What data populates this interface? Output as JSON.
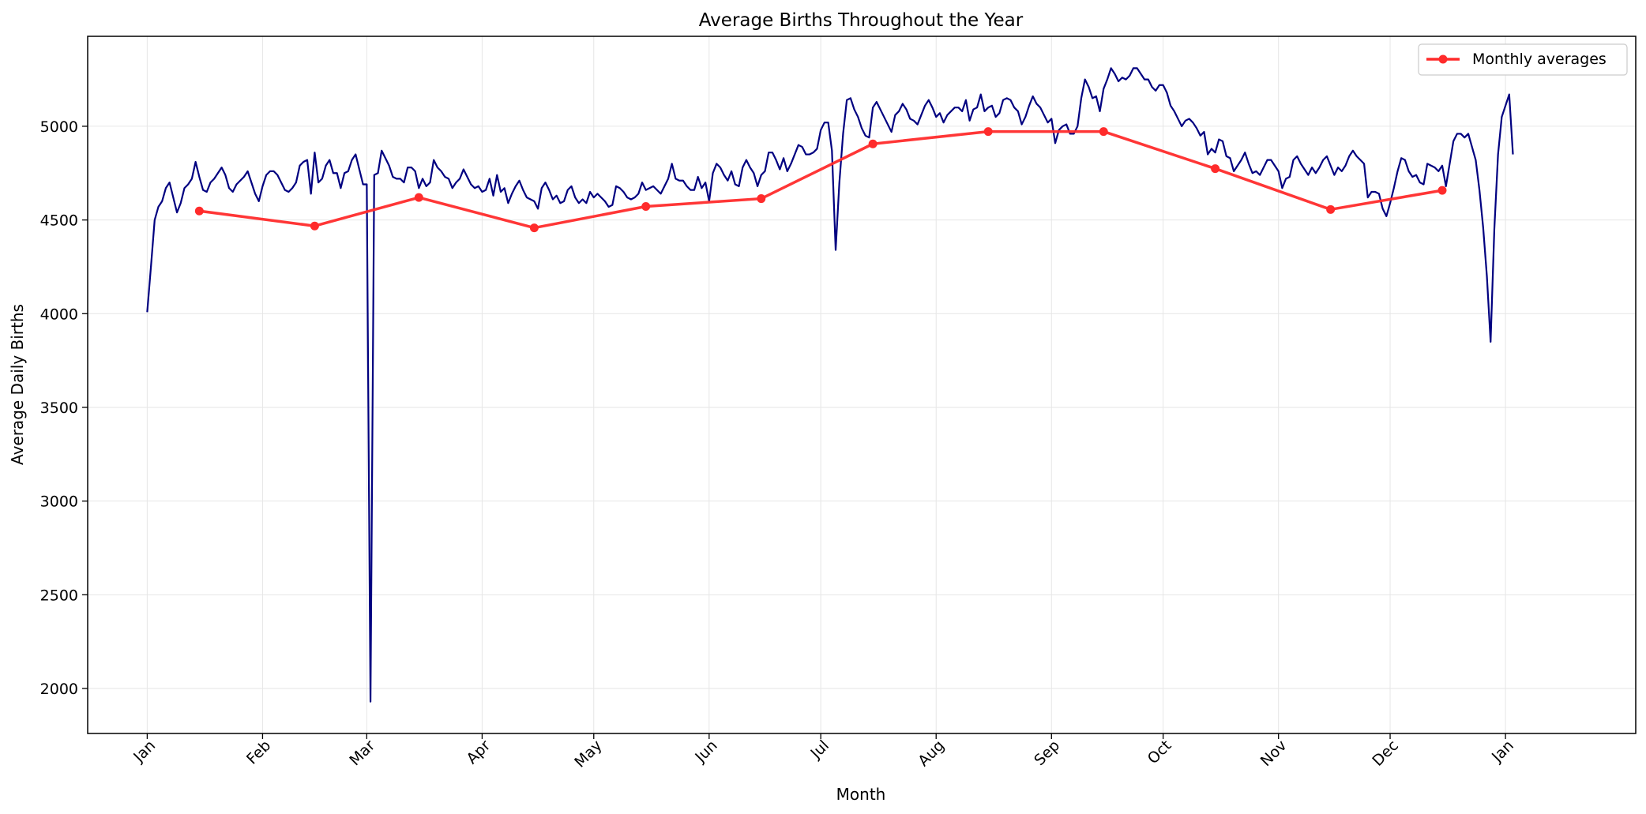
{
  "chart_data": {
    "type": "line",
    "title": "Average Births Throughout the Year",
    "xlabel": "Month",
    "ylabel": "Average Daily Births",
    "x_tick_labels": [
      "Jan",
      "Feb",
      "Mar",
      "Apr",
      "May",
      "Jun",
      "Jul",
      "Aug",
      "Sep",
      "Oct",
      "Nov",
      "Dec",
      "Jan"
    ],
    "y_ticks": [
      2000,
      2500,
      3000,
      3500,
      4000,
      4500,
      5000
    ],
    "ylim": [
      1760,
      5480
    ],
    "xlim_days": [
      -16,
      400
    ],
    "grid": true,
    "legend": {
      "entries": [
        "Monthly averages"
      ],
      "position": "upper right"
    },
    "colors": {
      "daily": "#000080",
      "monthly": "#ff2b2b"
    },
    "series": [
      {
        "type": "line",
        "x_start_date": "Jan 1",
        "step_days": 1,
        "values": [
          4008,
          4250,
          4500,
          4570,
          4600,
          4670,
          4700,
          4620,
          4540,
          4590,
          4670,
          4690,
          4720,
          4810,
          4730,
          4660,
          4650,
          4700,
          4720,
          4750,
          4780,
          4740,
          4670,
          4650,
          4690,
          4710,
          4730,
          4760,
          4700,
          4640,
          4600,
          4680,
          4740,
          4760,
          4760,
          4740,
          4700,
          4660,
          4650,
          4670,
          4700,
          4790,
          4810,
          4820,
          4640,
          4860,
          4700,
          4720,
          4790,
          4820,
          4750,
          4750,
          4670,
          4750,
          4760,
          4820,
          4850,
          4770,
          4690,
          4690,
          1930,
          4740,
          4750,
          4870,
          4830,
          4790,
          4730,
          4720,
          4720,
          4700,
          4780,
          4780,
          4760,
          4670,
          4720,
          4680,
          4700,
          4820,
          4780,
          4760,
          4730,
          4720,
          4670,
          4700,
          4720,
          4770,
          4730,
          4690,
          4670,
          4680,
          4650,
          4660,
          4720,
          4630,
          4740,
          4650,
          4670,
          4590,
          4640,
          4680,
          4710,
          4660,
          4620,
          4610,
          4600,
          4560,
          4670,
          4700,
          4660,
          4610,
          4630,
          4590,
          4600,
          4660,
          4680,
          4620,
          4590,
          4610,
          4590,
          4650,
          4620,
          4640,
          4620,
          4600,
          4570,
          4580,
          4680,
          4670,
          4650,
          4620,
          4610,
          4620,
          4640,
          4700,
          4660,
          4670,
          4680,
          4660,
          4640,
          4680,
          4720,
          4800,
          4720,
          4710,
          4710,
          4680,
          4660,
          4660,
          4730,
          4670,
          4700,
          4600,
          4750,
          4800,
          4780,
          4740,
          4710,
          4760,
          4690,
          4680,
          4780,
          4820,
          4780,
          4750,
          4680,
          4740,
          4760,
          4860,
          4860,
          4820,
          4770,
          4830,
          4760,
          4800,
          4850,
          4900,
          4890,
          4850,
          4850,
          4860,
          4880,
          4980,
          5020,
          5020,
          4870,
          4340,
          4700,
          4960,
          5140,
          5150,
          5090,
          5050,
          4990,
          4950,
          4940,
          5100,
          5130,
          5090,
          5050,
          5010,
          4970,
          5060,
          5080,
          5120,
          5090,
          5040,
          5030,
          5010,
          5060,
          5110,
          5140,
          5100,
          5050,
          5070,
          5020,
          5060,
          5080,
          5100,
          5100,
          5080,
          5140,
          5030,
          5090,
          5100,
          5170,
          5080,
          5100,
          5110,
          5050,
          5070,
          5140,
          5150,
          5140,
          5100,
          5080,
          5010,
          5050,
          5110,
          5160,
          5120,
          5100,
          5060,
          5020,
          5040,
          4910,
          4980,
          5000,
          5010,
          4960,
          4960,
          5000,
          5150,
          5250,
          5210,
          5150,
          5160,
          5080,
          5200,
          5250,
          5310,
          5280,
          5240,
          5260,
          5250,
          5270,
          5310,
          5310,
          5280,
          5250,
          5250,
          5210,
          5190,
          5220,
          5220,
          5180,
          5110,
          5080,
          5040,
          5000,
          5030,
          5040,
          5020,
          4990,
          4950,
          4970,
          4850,
          4880,
          4860,
          4930,
          4920,
          4840,
          4830,
          4760,
          4790,
          4820,
          4860,
          4800,
          4750,
          4760,
          4740,
          4780,
          4820,
          4820,
          4790,
          4760,
          4670,
          4720,
          4730,
          4820,
          4840,
          4800,
          4770,
          4740,
          4780,
          4750,
          4780,
          4820,
          4840,
          4790,
          4740,
          4780,
          4760,
          4790,
          4840,
          4870,
          4840,
          4820,
          4800,
          4620,
          4650,
          4650,
          4640,
          4560,
          4520,
          4590,
          4670,
          4760,
          4830,
          4820,
          4760,
          4730,
          4740,
          4700,
          4690,
          4800,
          4790,
          4780,
          4760,
          4790,
          4680,
          4800,
          4920,
          4960,
          4960,
          4940,
          4960,
          4890,
          4820,
          4660,
          4460,
          4200,
          3850,
          4450,
          4850,
          5050,
          5110,
          5170,
          4850
        ]
      },
      {
        "type": "line-marker",
        "name": "Monthly averages",
        "x": [
          "Jan 15",
          "Feb 15",
          "Mar 15",
          "Apr 15",
          "May 15",
          "Jun 15",
          "Jul 15",
          "Aug 15",
          "Sep 15",
          "Oct 15",
          "Nov 15",
          "Dec 15"
        ],
        "values": [
          4548,
          4468,
          4620,
          4458,
          4572,
          4614,
          4906,
          4972,
          4972,
          4774,
          4556,
          4658
        ]
      }
    ]
  }
}
